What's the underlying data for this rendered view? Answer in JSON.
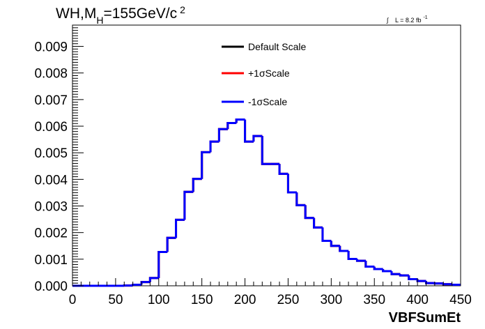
{
  "chart_data": {
    "type": "line",
    "title": {
      "prefix": "WH,M",
      "subscript": "H",
      "suffix": "=155GeV/c",
      "superscript": "2"
    },
    "luminosity": {
      "integral_symbol": "∫",
      "text": "L = 8.2 fb",
      "superscript": "-1"
    },
    "xlabel": "VBFSumEt",
    "ylabel": "",
    "xlim": [
      0,
      450
    ],
    "ylim": [
      0,
      0.0098
    ],
    "x_ticks": [
      {
        "value": 0,
        "label": "0"
      },
      {
        "value": 50,
        "label": "50"
      },
      {
        "value": 100,
        "label": "100"
      },
      {
        "value": 150,
        "label": "150"
      },
      {
        "value": 200,
        "label": "200"
      },
      {
        "value": 250,
        "label": "250"
      },
      {
        "value": 300,
        "label": "300"
      },
      {
        "value": 350,
        "label": "350"
      },
      {
        "value": 400,
        "label": "400"
      },
      {
        "value": 450,
        "label": "450"
      }
    ],
    "y_ticks": [
      {
        "value": 0.0,
        "label": "0.000"
      },
      {
        "value": 0.001,
        "label": "0.001"
      },
      {
        "value": 0.002,
        "label": "0.002"
      },
      {
        "value": 0.003,
        "label": "0.003"
      },
      {
        "value": 0.004,
        "label": "0.004"
      },
      {
        "value": 0.005,
        "label": "0.005"
      },
      {
        "value": 0.006,
        "label": "0.006"
      },
      {
        "value": 0.007,
        "label": "0.007"
      },
      {
        "value": 0.008,
        "label": "0.008"
      },
      {
        "value": 0.009,
        "label": "0.009"
      }
    ],
    "grid": false,
    "legend_position": "top-center",
    "bin_edges": [
      0,
      10,
      20,
      30,
      40,
      50,
      60,
      70,
      80,
      90,
      100,
      110,
      120,
      130,
      140,
      150,
      160,
      170,
      180,
      190,
      200,
      210,
      220,
      230,
      240,
      250,
      260,
      270,
      280,
      290,
      300,
      310,
      320,
      330,
      340,
      350,
      360,
      370,
      380,
      390,
      400,
      410,
      420,
      430,
      440,
      450
    ],
    "series": [
      {
        "name": "Default Scale",
        "color": "#000000",
        "values": [
          0,
          0,
          0,
          0,
          0,
          0,
          1e-05,
          4e-05,
          0.00014,
          0.00029,
          0.00127,
          0.0018,
          0.00248,
          0.00353,
          0.00402,
          0.00502,
          0.00542,
          0.00589,
          0.00612,
          0.00625,
          0.00542,
          0.00563,
          0.00458,
          0.00458,
          0.00421,
          0.00351,
          0.00303,
          0.00255,
          0.00219,
          0.00169,
          0.0015,
          0.00131,
          0.00101,
          0.00094,
          0.00072,
          0.00063,
          0.00055,
          0.00044,
          0.00039,
          0.00025,
          0.00018,
          0.0001,
          9e-05,
          6e-05,
          4e-05
        ]
      },
      {
        "name": "+1σScale",
        "color": "#ff0000",
        "values": [
          0,
          0,
          0,
          0,
          0,
          0,
          1e-05,
          4e-05,
          0.00014,
          0.00029,
          0.00127,
          0.0018,
          0.00248,
          0.00353,
          0.00402,
          0.00502,
          0.00542,
          0.00589,
          0.00612,
          0.00625,
          0.00542,
          0.00563,
          0.00458,
          0.00458,
          0.00421,
          0.00351,
          0.00303,
          0.00255,
          0.00219,
          0.00169,
          0.0015,
          0.00131,
          0.00101,
          0.00094,
          0.00072,
          0.00063,
          0.00055,
          0.00044,
          0.00039,
          0.00025,
          0.00018,
          0.0001,
          9e-05,
          6e-05,
          4e-05
        ]
      },
      {
        "name": "-1σScale",
        "color": "#0000ff",
        "values": [
          0,
          0,
          0,
          0,
          0,
          0,
          1e-05,
          4e-05,
          0.00014,
          0.00029,
          0.00127,
          0.0018,
          0.00248,
          0.00353,
          0.00402,
          0.00502,
          0.00542,
          0.00589,
          0.00612,
          0.00625,
          0.00542,
          0.00563,
          0.00458,
          0.00458,
          0.00421,
          0.00351,
          0.00303,
          0.00255,
          0.00219,
          0.00169,
          0.0015,
          0.00131,
          0.00101,
          0.00094,
          0.00072,
          0.00063,
          0.00055,
          0.00044,
          0.00039,
          0.00025,
          0.00018,
          0.0001,
          9e-05,
          6e-05,
          4e-05
        ]
      }
    ]
  }
}
